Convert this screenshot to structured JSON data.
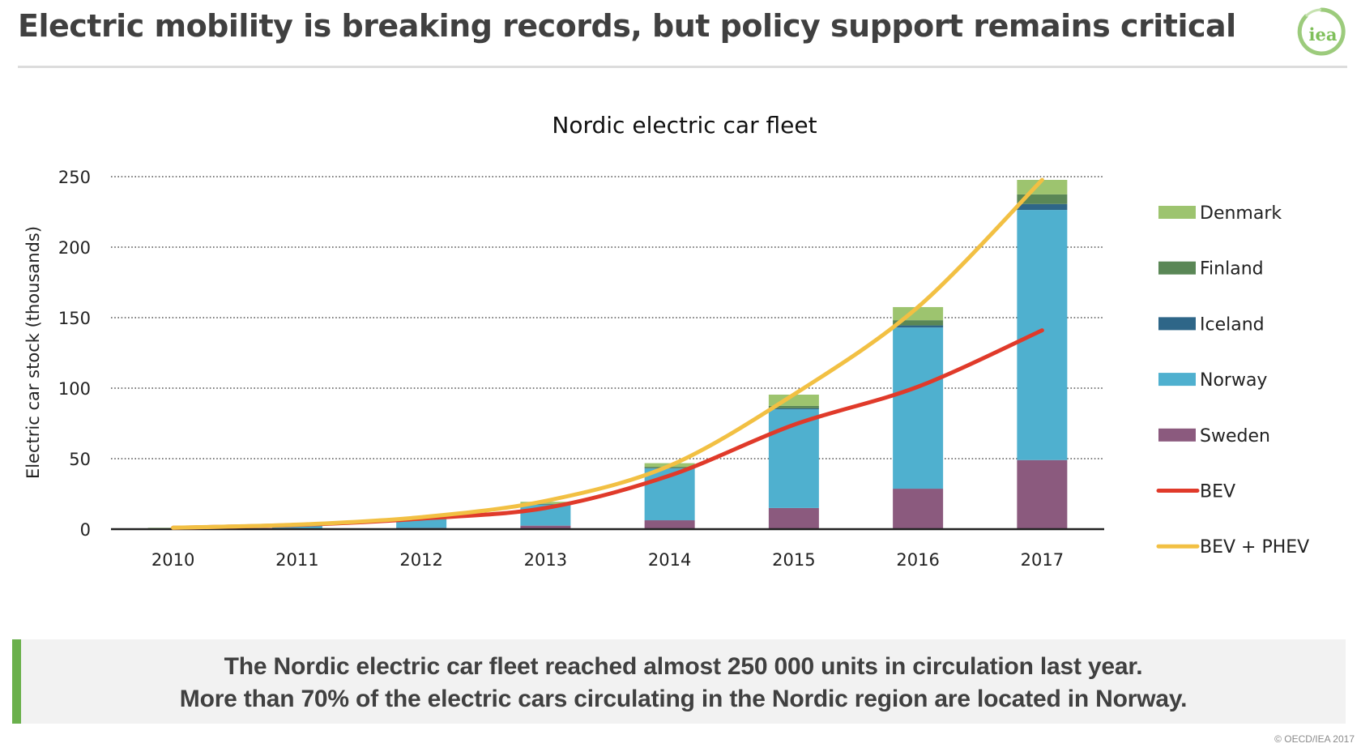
{
  "header": {
    "title": "Electric mobility is breaking records, but policy support remains critical",
    "logo_text": "iea"
  },
  "chart_data": {
    "type": "bar",
    "stacked": true,
    "title": "Nordic electric car fleet",
    "xlabel": "",
    "ylabel": "Electric car stock (thousands)",
    "ylim": [
      0,
      250
    ],
    "yticks": [
      "0",
      "50",
      "100",
      "150",
      "200",
      "250"
    ],
    "ytick_values": [
      0,
      50,
      100,
      150,
      200,
      250
    ],
    "grid": "horizontal dotted",
    "legend_position": "right",
    "categories": [
      "2010",
      "2011",
      "2012",
      "2013",
      "2014",
      "2015",
      "2016",
      "2017"
    ],
    "series": [
      {
        "name": "Sweden",
        "kind": "bar",
        "color": "#8b5a7e",
        "values": [
          0.2,
          0.4,
          0.9,
          2.5,
          6.3,
          15.0,
          28.7,
          49.0
        ]
      },
      {
        "name": "Norway",
        "kind": "bar",
        "color": "#4fb0cf",
        "values": [
          0.5,
          2.0,
          6.0,
          15.0,
          36.7,
          70.0,
          114.3,
          177.4
        ]
      },
      {
        "name": "Iceland",
        "kind": "bar",
        "color": "#2e6688",
        "values": [
          0.0,
          0.0,
          0.0,
          0.1,
          0.3,
          0.7,
          1.5,
          4.2
        ]
      },
      {
        "name": "Finland",
        "kind": "bar",
        "color": "#5a8756",
        "values": [
          0.0,
          0.1,
          0.2,
          0.4,
          0.9,
          1.7,
          3.7,
          6.8
        ]
      },
      {
        "name": "Denmark",
        "kind": "bar",
        "color": "#9dc46f",
        "values": [
          0.3,
          0.6,
          1.0,
          1.4,
          2.6,
          8.0,
          9.3,
          10.3
        ]
      },
      {
        "name": "BEV",
        "kind": "line",
        "color": "#e03a2a",
        "values": [
          1.0,
          3.0,
          7.5,
          15.0,
          38.0,
          74.0,
          101.0,
          141.0
        ]
      },
      {
        "name": "BEV + PHEV",
        "kind": "line",
        "color": "#f2c043",
        "values": [
          1.0,
          3.2,
          8.5,
          20.0,
          45.0,
          95.5,
          157.5,
          247.7
        ]
      }
    ],
    "legend_order": [
      "Denmark",
      "Finland",
      "Iceland",
      "Norway",
      "Sweden",
      "BEV",
      "BEV + PHEV"
    ]
  },
  "callout": {
    "line1": "The Nordic electric car fleet reached almost 250 000 units in circulation last year.",
    "line2": "More than 70% of the electric cars circulating in the Nordic region are located in Norway.",
    "accent_color": "#6ab04c"
  },
  "footer": {
    "copyright": "© OECD/IEA 2017"
  }
}
